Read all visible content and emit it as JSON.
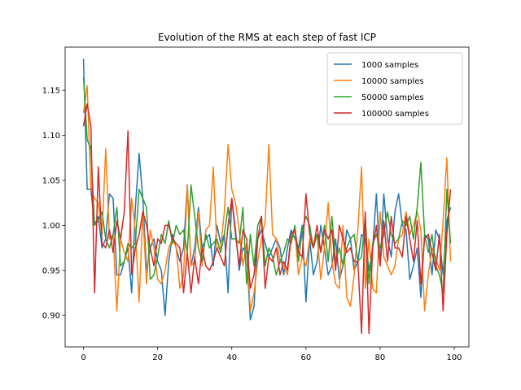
{
  "chart_data": {
    "type": "line",
    "title": "Evolution of the RMS at each step of fast ICP",
    "xlabel": "",
    "ylabel": "",
    "xlim": [
      -4.95,
      103.95
    ],
    "ylim": [
      0.865,
      1.198
    ],
    "xticks": [
      0,
      20,
      40,
      60,
      80,
      100
    ],
    "yticks": [
      0.9,
      0.95,
      1.0,
      1.05,
      1.1,
      1.15
    ],
    "ytick_labels": [
      "0.90",
      "0.95",
      "1.00",
      "1.05",
      "1.10",
      "1.15"
    ],
    "grid": false,
    "legend_position": "top-right",
    "series": [
      {
        "name": "1000 samples",
        "color": "#1f77b4",
        "values": [
          1.185,
          1.04,
          1.04,
          1.0,
          1.01,
          0.975,
          0.985,
          1.035,
          1.03,
          0.945,
          0.945,
          0.96,
          0.975,
          0.925,
          1.02,
          1.08,
          1.03,
          0.95,
          0.975,
          0.985,
          0.96,
          0.95,
          0.9,
          0.96,
          0.99,
          0.975,
          0.96,
          0.975,
          1.045,
          0.955,
          0.975,
          1.02,
          0.975,
          0.985,
          0.99,
          0.955,
          1.0,
          0.98,
          0.99,
          0.925,
          1.03,
          0.995,
          0.95,
          0.975,
          0.97,
          0.895,
          0.91,
          0.985,
          0.995,
          0.98,
          0.965,
          0.975,
          0.985,
          0.975,
          0.945,
          0.975,
          0.995,
          0.985,
          0.975,
          1.0,
          0.915,
          0.985,
          0.945,
          0.96,
          1.0,
          0.975,
          0.945,
          0.955,
          0.985,
          0.94,
          0.955,
          0.995,
          0.985,
          0.95,
          0.96,
          0.99,
          0.985,
          0.95,
          0.975,
          1.035,
          0.955,
          1.035,
          0.985,
          0.965,
          1.015,
          1.035,
          1.0,
          0.995,
          0.94,
          0.955,
          0.975,
          0.92,
          0.99,
          0.985,
          0.945,
          0.995,
          0.985,
          0.945,
          1.005,
          1.02
        ]
      },
      {
        "name": "10000 samples",
        "color": "#ff7f0e",
        "values": [
          1.125,
          1.155,
          1.04,
          1.03,
          1.025,
          0.99,
          1.085,
          0.985,
          0.99,
          0.905,
          0.985,
          0.97,
          0.96,
          1.03,
          0.995,
          0.915,
          1.015,
          0.935,
          0.995,
          0.975,
          0.94,
          0.935,
          0.95,
          0.975,
          0.985,
          0.975,
          0.93,
          0.945,
          1.045,
          0.955,
          0.96,
          1.015,
          0.955,
          0.995,
          1.0,
          1.065,
          0.975,
          0.975,
          1.015,
          1.09,
          1.04,
          1.025,
          0.995,
          0.955,
          0.98,
          0.905,
          0.925,
          0.96,
          0.985,
          1.005,
          1.09,
          0.99,
          0.985,
          0.96,
          0.955,
          0.945,
          0.985,
          0.995,
          0.945,
          0.965,
          0.955,
          0.985,
          0.975,
          0.99,
          0.94,
          0.975,
          1.025,
          0.96,
          0.935,
          0.93,
          1.0,
          0.92,
          0.91,
          0.945,
          0.995,
          1.065,
          0.93,
          0.985,
          0.93,
          0.925,
          1.015,
          0.965,
          0.955,
          0.945,
          0.955,
          0.985,
          0.99,
          1.015,
          0.99,
          1.0,
          1.015,
          0.995,
          0.905,
          0.945,
          0.975,
          0.965,
          0.95,
          1.005,
          1.075,
          0.96
        ]
      },
      {
        "name": "50000 samples",
        "color": "#2ca02c",
        "values": [
          1.165,
          1.095,
          1.085,
          1.0,
          1.005,
          1.015,
          0.985,
          0.975,
          0.99,
          1.02,
          0.955,
          0.96,
          0.98,
          0.975,
          0.98,
          1.04,
          1.03,
          1.02,
          0.94,
          0.945,
          0.965,
          0.99,
          0.98,
          1.005,
          0.98,
          1.0,
          0.99,
          0.995,
          0.97,
          1.045,
          1.01,
          0.975,
          0.96,
          0.99,
          0.975,
          0.98,
          0.985,
          0.97,
          0.99,
          1.02,
          0.985,
          0.985,
          0.98,
          1.02,
          0.935,
          0.99,
          0.955,
          1.0,
          1.01,
          0.955,
          0.975,
          0.965,
          0.945,
          0.96,
          0.97,
          0.985,
          0.98,
          1.0,
          0.96,
          0.995,
          1.01,
          1.0,
          0.975,
          0.99,
          0.97,
          1.0,
          0.96,
          1.01,
          0.96,
          0.975,
          0.955,
          0.975,
          0.985,
          0.99,
          0.96,
          0.965,
          1.01,
          0.935,
          0.98,
          0.99,
          0.975,
          0.99,
          1.015,
          0.99,
          0.98,
          0.985,
          1.005,
          1.0,
          1.01,
          0.985,
          1.02,
          1.07,
          0.99,
          0.97,
          0.99,
          0.955,
          0.945,
          0.925,
          1.04,
          0.98
        ]
      },
      {
        "name": "100000 samples",
        "color": "#d62728",
        "values": [
          1.11,
          1.135,
          1.11,
          0.925,
          1.065,
          0.98,
          0.975,
          0.995,
          0.97,
          1.005,
          0.985,
          1.015,
          1.105,
          0.945,
          0.975,
          0.99,
          1.015,
          1.0,
          0.975,
          0.955,
          0.985,
          0.98,
          1.0,
          1.0,
          0.985,
          0.98,
          0.975,
          0.925,
          0.97,
          0.925,
          0.965,
          0.935,
          0.975,
          0.955,
          0.95,
          0.96,
          0.975,
          0.965,
          0.955,
          1.0,
          1.03,
          0.99,
          0.955,
          0.995,
          0.985,
          0.93,
          0.945,
          0.985,
          1.01,
          0.93,
          0.965,
          0.96,
          0.975,
          0.945,
          0.96,
          0.95,
          0.99,
          0.995,
          0.97,
          0.965,
          1.035,
          0.99,
          0.975,
          1.0,
          0.97,
          0.995,
          0.985,
          0.995,
          0.95,
          1.0,
          0.985,
          0.97,
          0.975,
          0.96,
          0.96,
          0.88,
          1.015,
          0.88,
          0.975,
          1.0,
          0.955,
          1.005,
          0.96,
          1.01,
          0.975,
          0.975,
          0.965,
          1.01,
          0.985,
          0.96,
          1.005,
          0.935,
          0.985,
          0.99,
          0.97,
          0.95,
          0.99,
          0.905,
          0.99,
          1.04
        ]
      }
    ]
  }
}
